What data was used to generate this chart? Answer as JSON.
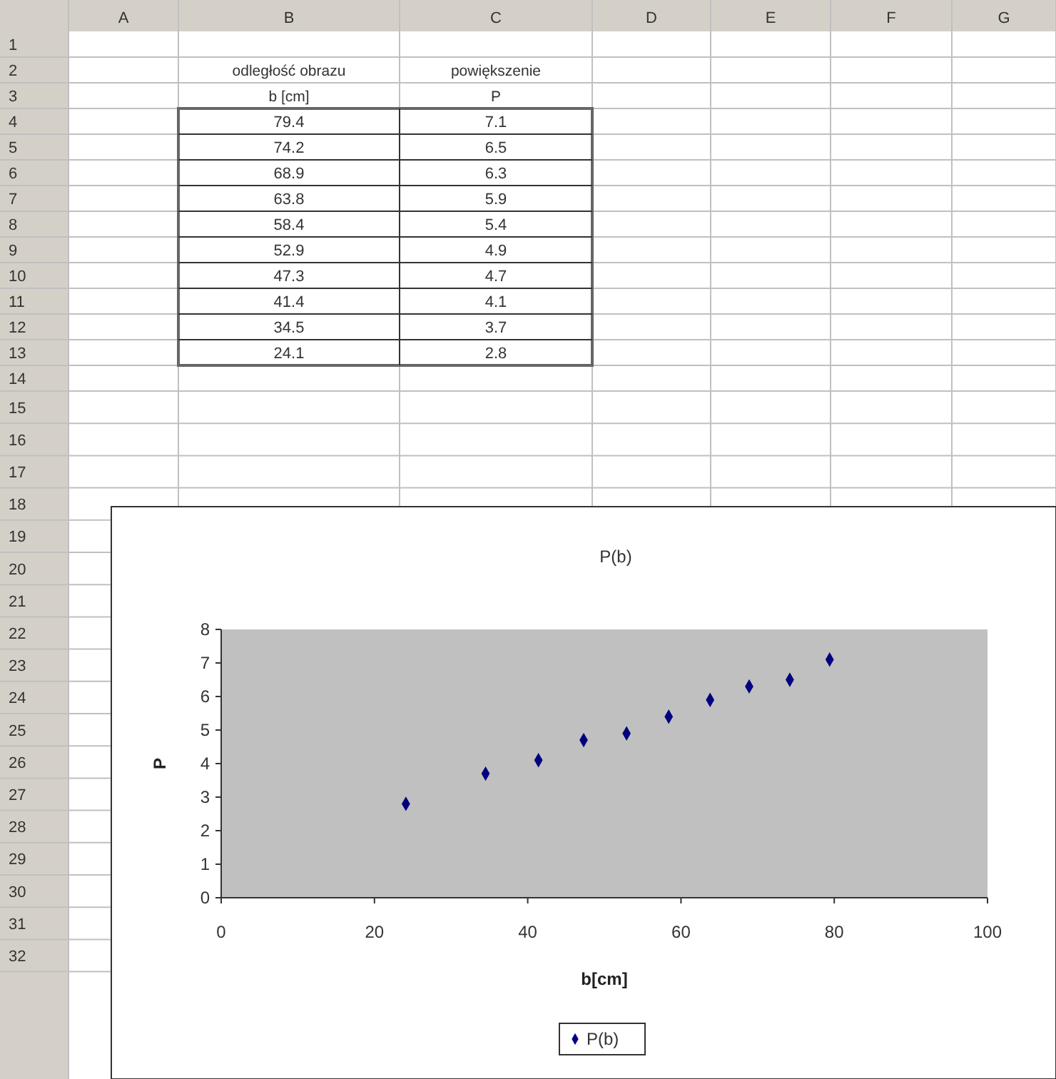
{
  "chart_data": {
    "type": "scatter",
    "title": "P(b)",
    "xlabel": "b[cm]",
    "ylabel": "P",
    "x": [
      79.4,
      74.2,
      68.9,
      63.8,
      58.4,
      52.9,
      47.3,
      41.4,
      34.5,
      24.1
    ],
    "series": [
      {
        "name": "P(b)",
        "color": "#000080",
        "values": [
          7.1,
          6.5,
          6.3,
          5.9,
          5.4,
          4.9,
          4.7,
          4.1,
          3.7,
          2.8
        ]
      }
    ],
    "xlim": [
      0,
      100
    ],
    "xticks": [
      0,
      20,
      40,
      60,
      80,
      100
    ],
    "ylim": [
      0,
      8
    ],
    "yticks": [
      0,
      1,
      2,
      3,
      4,
      5,
      6,
      7,
      8
    ],
    "grid": false,
    "legend": "bottom",
    "marker": "diamond",
    "annotations": [
      "odległość obrazu",
      "b [cm]",
      "powiększenie",
      "P",
      "A",
      "B",
      "C",
      "D",
      "E",
      "F",
      "G",
      "1",
      "2",
      "3",
      "4",
      "5",
      "6",
      "7",
      "8",
      "9",
      "10",
      "11",
      "12",
      "13",
      "14",
      "15",
      "16",
      "17",
      "18",
      "19",
      "20",
      "21",
      "22",
      "23",
      "24",
      "25",
      "26",
      "27",
      "28",
      "29",
      "30",
      "31",
      "32",
      "79.4",
      "7.1",
      "74.2",
      "6.5",
      "68.9",
      "6.3",
      "63.8",
      "5.9",
      "58.4",
      "5.4",
      "52.9",
      "4.9",
      "47.3",
      "4.7",
      "41.4",
      "4.1",
      "34.5",
      "3.7",
      "24.1",
      "2.8"
    ]
  }
}
